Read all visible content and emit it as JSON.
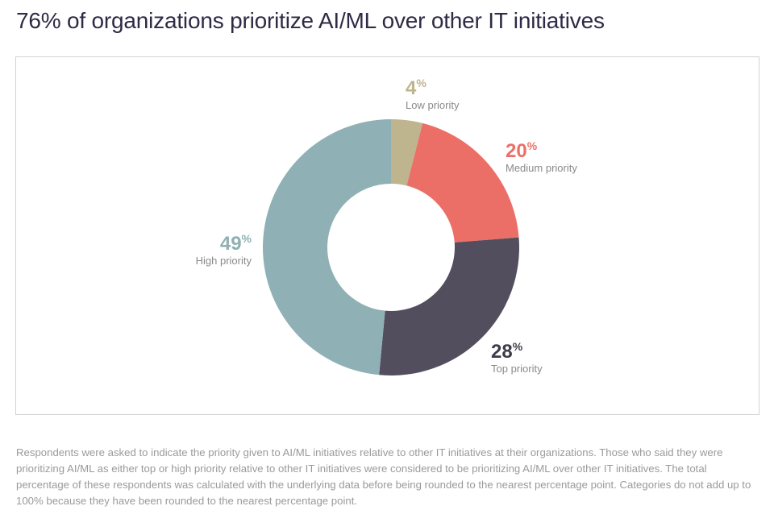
{
  "title": "76% of organizations prioritize AI/ML over other IT initiatives",
  "chart_data": {
    "type": "pie",
    "title": "76% of organizations prioritize AI/ML over other IT initiatives",
    "categories": [
      "Low priority",
      "Medium priority",
      "Top priority",
      "High priority"
    ],
    "values": [
      4,
      20,
      28,
      49
    ],
    "value_suffix": "%",
    "colors": [
      "#beb48e",
      "#ec6f67",
      "#524e5e",
      "#8fb0b4"
    ],
    "label_colors": [
      "#beb48e",
      "#ec6f67",
      "#3f3b4a",
      "#8fb0b4"
    ]
  },
  "footnote": "Respondents were asked to indicate the priority given to AI/ML initiatives relative to other IT initiatives at their organizations. Those who said they were prioritizing AI/ML as either top or high priority relative to other IT initiatives were considered to be prioritizing AI/ML over other IT initiatives. The total percentage of these respondents was calculated with the underlying data before being rounded to the nearest percentage point. Categories do not add up to 100% because they have been rounded to the nearest percentage point."
}
